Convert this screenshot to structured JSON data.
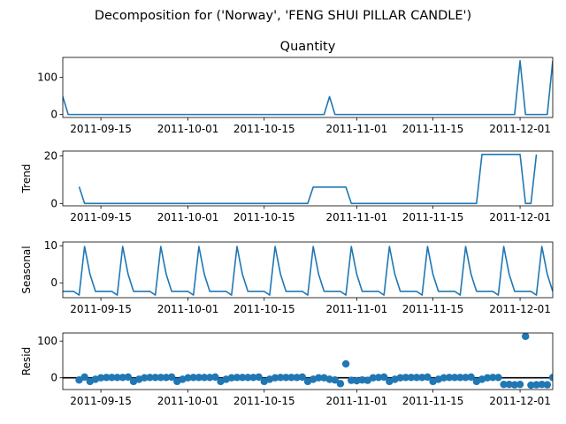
{
  "figure": {
    "suptitle": "Decomposition for ('Norway', 'FENG SHUI PILLAR CANDLE')"
  },
  "chart_data": [
    {
      "type": "line",
      "title": "Quantity",
      "ylabel": "",
      "color": "#1f77b4",
      "xlim": [
        "2011-09-08",
        "2011-12-07"
      ],
      "ylim": [
        -8,
        153
      ],
      "yticks": [
        0,
        100
      ],
      "xticks": [
        "2011-09-15",
        "2011-10-01",
        "2011-10-15",
        "2011-11-01",
        "2011-11-15",
        "2011-12-01"
      ],
      "points": [
        [
          "2011-09-08",
          48
        ],
        [
          "2011-09-09",
          0
        ],
        [
          "2011-10-26",
          0
        ],
        [
          "2011-10-27",
          48
        ],
        [
          "2011-10-28",
          0
        ],
        [
          "2011-11-30",
          0
        ],
        [
          "2011-12-01",
          144
        ],
        [
          "2011-12-02",
          0
        ],
        [
          "2011-12-06",
          0
        ],
        [
          "2011-12-07",
          144
        ]
      ]
    },
    {
      "type": "line",
      "title": "",
      "ylabel": "Trend",
      "color": "#1f77b4",
      "xlim": [
        "2011-09-08",
        "2011-12-07"
      ],
      "ylim": [
        -1,
        22
      ],
      "yticks": [
        0,
        20
      ],
      "xticks": [
        "2011-09-15",
        "2011-10-01",
        "2011-10-15",
        "2011-11-01",
        "2011-11-15",
        "2011-12-01"
      ],
      "points": [
        [
          "2011-09-11",
          7
        ],
        [
          "2011-09-12",
          0
        ],
        [
          "2011-10-23",
          0
        ],
        [
          "2011-10-24",
          6.86
        ],
        [
          "2011-10-30",
          6.86
        ],
        [
          "2011-10-31",
          0
        ],
        [
          "2011-11-23",
          0
        ],
        [
          "2011-11-24",
          20.57
        ],
        [
          "2011-11-30",
          20.57
        ],
        [
          "2011-12-01",
          20.57
        ],
        [
          "2011-12-02",
          0
        ],
        [
          "2011-12-03",
          0
        ],
        [
          "2011-12-04",
          20.57
        ]
      ]
    },
    {
      "type": "line",
      "title": "",
      "ylabel": "Seasonal",
      "color": "#1f77b4",
      "xlim": [
        "2011-09-08",
        "2011-12-07"
      ],
      "ylim": [
        -4,
        11
      ],
      "yticks": [
        0,
        10
      ],
      "xticks": [
        "2011-09-15",
        "2011-10-01",
        "2011-10-15",
        "2011-11-01",
        "2011-11-15",
        "2011-12-01"
      ],
      "period_pattern": [
        -2.3,
        -2.3,
        -2.3,
        -3.3,
        9.8,
        2.3,
        -2.3
      ],
      "first_date": "2011-09-08"
    },
    {
      "type": "scatter",
      "title": "",
      "ylabel": "Resid",
      "color": "#1f77b4",
      "zero_line": true,
      "xlim": [
        "2011-09-08",
        "2011-12-07"
      ],
      "ylim": [
        -32,
        122
      ],
      "yticks": [
        0,
        100
      ],
      "xticks": [
        "2011-09-15",
        "2011-10-01",
        "2011-10-15",
        "2011-11-01",
        "2011-11-15",
        "2011-12-01"
      ],
      "points": [
        [
          "2011-09-11",
          -6
        ],
        [
          "2011-09-12",
          2
        ],
        [
          "2011-09-13",
          -10
        ],
        [
          "2011-09-14",
          -4
        ],
        [
          "2011-09-15",
          0
        ],
        [
          "2011-09-16",
          1
        ],
        [
          "2011-09-17",
          1
        ],
        [
          "2011-09-18",
          1
        ],
        [
          "2011-09-19",
          1
        ],
        [
          "2011-09-20",
          2
        ],
        [
          "2011-09-21",
          -10
        ],
        [
          "2011-09-22",
          -4
        ],
        [
          "2011-09-23",
          0
        ],
        [
          "2011-09-24",
          1
        ],
        [
          "2011-09-25",
          1
        ],
        [
          "2011-09-26",
          1
        ],
        [
          "2011-09-27",
          1
        ],
        [
          "2011-09-28",
          2
        ],
        [
          "2011-09-29",
          -10
        ],
        [
          "2011-09-30",
          -4
        ],
        [
          "2011-10-01",
          0
        ],
        [
          "2011-10-02",
          1
        ],
        [
          "2011-10-03",
          1
        ],
        [
          "2011-10-04",
          1
        ],
        [
          "2011-10-05",
          1
        ],
        [
          "2011-10-06",
          2
        ],
        [
          "2011-10-07",
          -10
        ],
        [
          "2011-10-08",
          -4
        ],
        [
          "2011-10-09",
          0
        ],
        [
          "2011-10-10",
          1
        ],
        [
          "2011-10-11",
          1
        ],
        [
          "2011-10-12",
          1
        ],
        [
          "2011-10-13",
          1
        ],
        [
          "2011-10-14",
          2
        ],
        [
          "2011-10-15",
          -10
        ],
        [
          "2011-10-16",
          -4
        ],
        [
          "2011-10-17",
          0
        ],
        [
          "2011-10-18",
          1
        ],
        [
          "2011-10-19",
          1
        ],
        [
          "2011-10-20",
          1
        ],
        [
          "2011-10-21",
          1
        ],
        [
          "2011-10-22",
          2
        ],
        [
          "2011-10-23",
          -10
        ],
        [
          "2011-10-24",
          -4
        ],
        [
          "2011-10-25",
          0
        ],
        [
          "2011-10-26",
          0
        ],
        [
          "2011-10-27",
          -4
        ],
        [
          "2011-10-28",
          -6
        ],
        [
          "2011-10-29",
          -16
        ],
        [
          "2011-10-30",
          38
        ],
        [
          "2011-10-31",
          -7
        ],
        [
          "2011-11-01",
          -8
        ],
        [
          "2011-11-02",
          -6
        ],
        [
          "2011-11-03",
          -7
        ],
        [
          "2011-11-04",
          0
        ],
        [
          "2011-11-05",
          1
        ],
        [
          "2011-11-06",
          2
        ],
        [
          "2011-11-07",
          -10
        ],
        [
          "2011-11-08",
          -4
        ],
        [
          "2011-11-09",
          0
        ],
        [
          "2011-11-10",
          1
        ],
        [
          "2011-11-11",
          1
        ],
        [
          "2011-11-12",
          1
        ],
        [
          "2011-11-13",
          1
        ],
        [
          "2011-11-14",
          2
        ],
        [
          "2011-11-15",
          -10
        ],
        [
          "2011-11-16",
          -4
        ],
        [
          "2011-11-17",
          0
        ],
        [
          "2011-11-18",
          1
        ],
        [
          "2011-11-19",
          1
        ],
        [
          "2011-11-20",
          1
        ],
        [
          "2011-11-21",
          1
        ],
        [
          "2011-11-22",
          2
        ],
        [
          "2011-11-23",
          -10
        ],
        [
          "2011-11-24",
          -4
        ],
        [
          "2011-11-25",
          0
        ],
        [
          "2011-11-26",
          1
        ],
        [
          "2011-11-27",
          1
        ],
        [
          "2011-11-28",
          -18
        ],
        [
          "2011-11-29",
          -18
        ],
        [
          "2011-11-30",
          -19
        ],
        [
          "2011-12-01",
          -18
        ],
        [
          "2011-12-02",
          113
        ],
        [
          "2011-12-03",
          -20
        ],
        [
          "2011-12-04",
          -19
        ],
        [
          "2011-12-05",
          -18
        ],
        [
          "2011-12-06",
          -19
        ],
        [
          "2011-12-07",
          1
        ],
        [
          "2011-12-08",
          1
        ],
        [
          "2011-12-09",
          -20
        ]
      ]
    }
  ]
}
